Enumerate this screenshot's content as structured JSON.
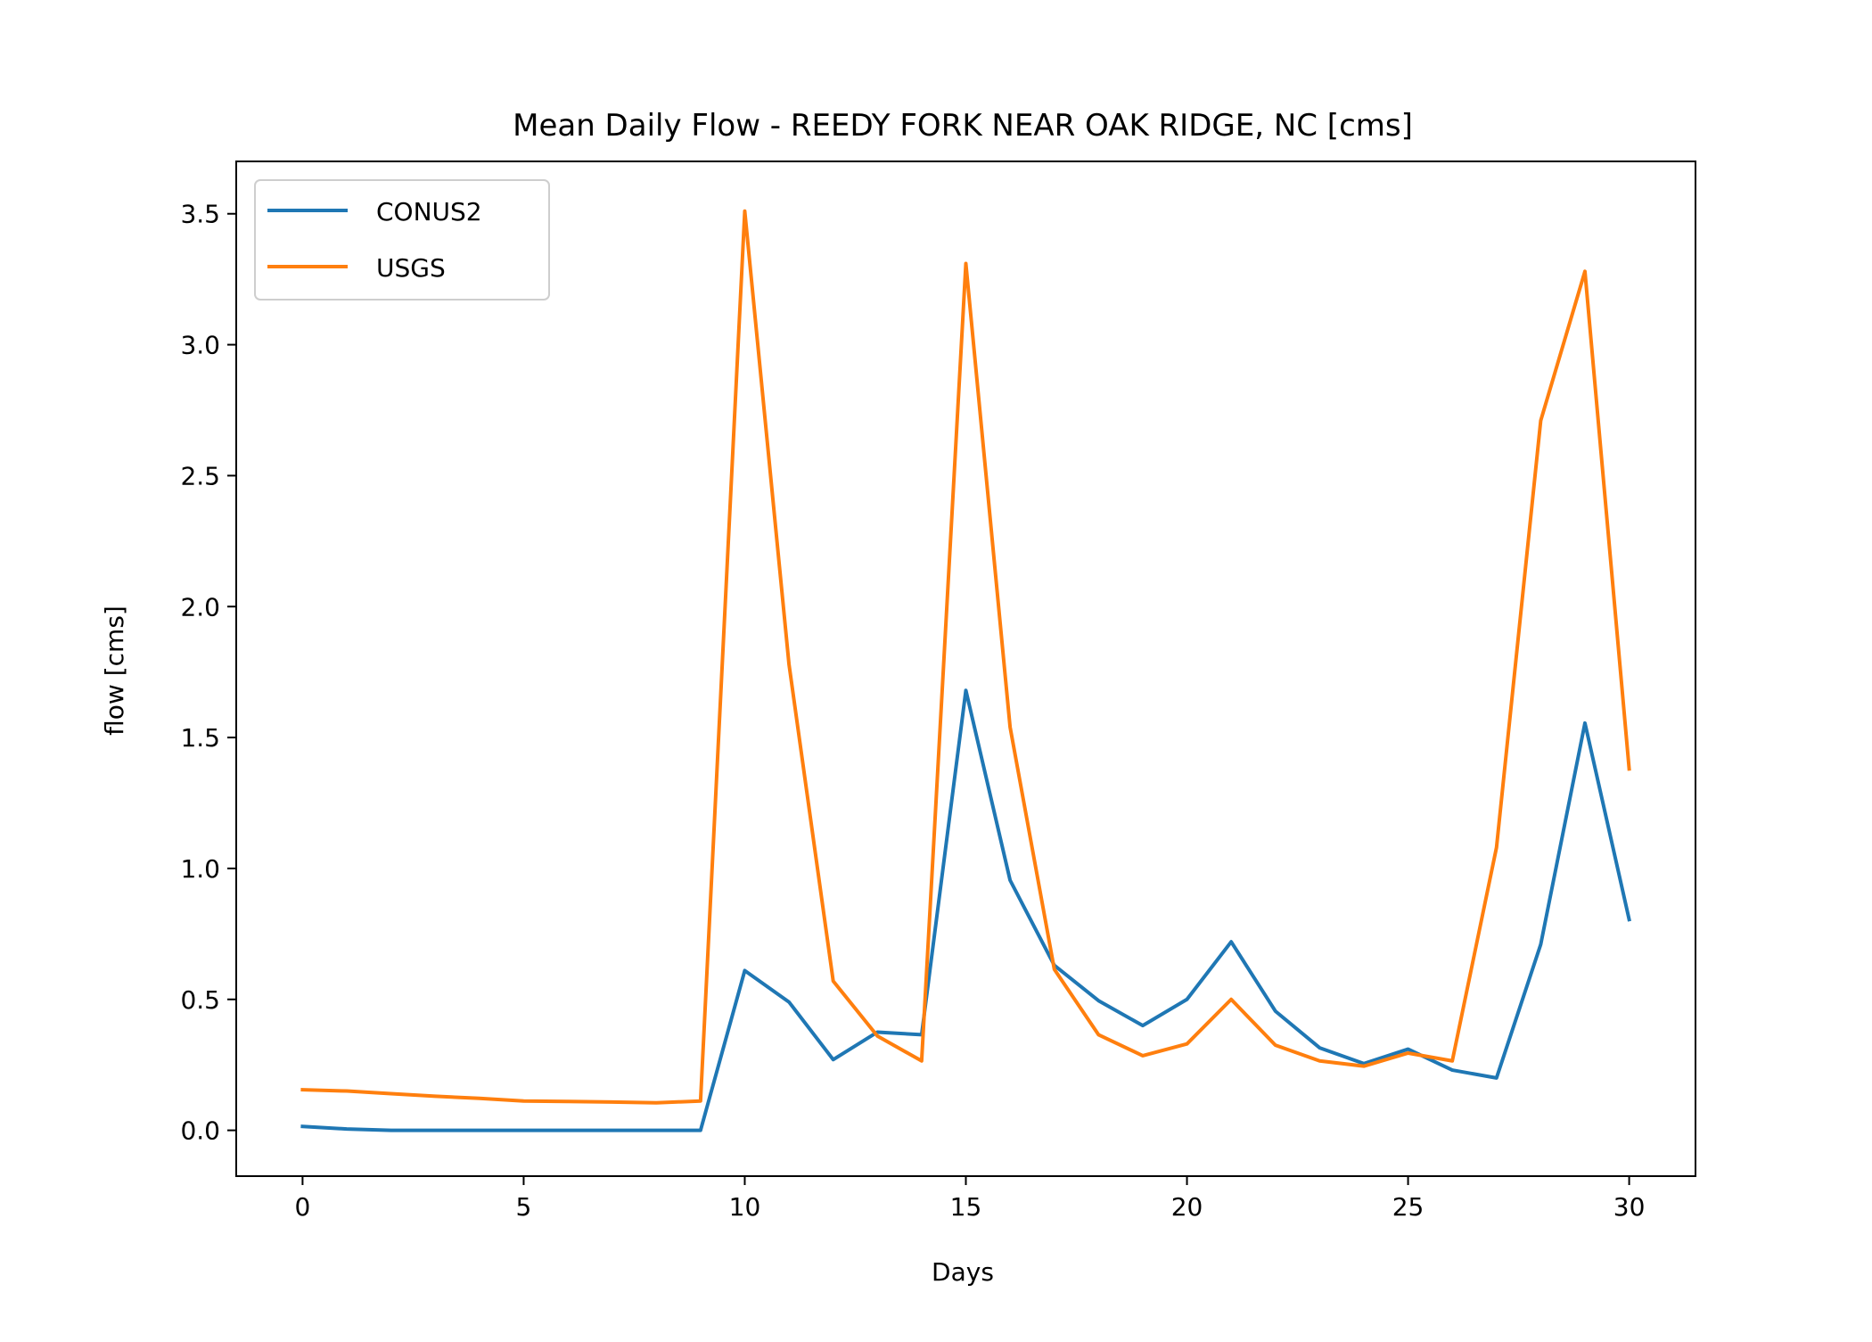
{
  "chart_data": {
    "type": "line",
    "title": "Mean Daily Flow - REEDY FORK NEAR OAK RIDGE, NC [cms]",
    "xlabel": "Days",
    "ylabel": "flow [cms]",
    "xlim": [
      -1.5,
      31.5
    ],
    "ylim": [
      -0.175,
      3.7
    ],
    "xticks": [
      0,
      5,
      10,
      15,
      20,
      25,
      30
    ],
    "yticks": [
      0.0,
      0.5,
      1.0,
      1.5,
      2.0,
      2.5,
      3.0,
      3.5
    ],
    "ytick_labels": [
      "0.0",
      "0.5",
      "1.0",
      "1.5",
      "2.0",
      "2.5",
      "3.0",
      "3.5"
    ],
    "grid": false,
    "legend_position": "top-left",
    "x": [
      0,
      1,
      2,
      3,
      4,
      5,
      6,
      7,
      8,
      9,
      10,
      11,
      12,
      13,
      14,
      15,
      16,
      17,
      18,
      19,
      20,
      21,
      22,
      23,
      24,
      25,
      26,
      27,
      28,
      29,
      30
    ],
    "series": [
      {
        "name": "CONUS2",
        "color": "#1f77b4",
        "values": [
          0.015,
          0.005,
          0.0,
          0.0,
          0.0,
          0.0,
          0.0,
          0.0,
          0.0,
          0.0,
          0.61,
          0.49,
          0.27,
          0.375,
          0.365,
          1.68,
          0.955,
          0.63,
          0.495,
          0.4,
          0.5,
          0.72,
          0.455,
          0.315,
          0.255,
          0.31,
          0.23,
          0.2,
          0.71,
          1.555,
          0.805
        ]
      },
      {
        "name": "USGS",
        "color": "#ff7f0e",
        "values": [
          0.155,
          0.15,
          0.14,
          0.13,
          0.122,
          0.112,
          0.11,
          0.108,
          0.105,
          0.112,
          3.51,
          1.78,
          0.57,
          0.36,
          0.265,
          3.31,
          1.54,
          0.615,
          0.365,
          0.285,
          0.33,
          0.5,
          0.325,
          0.265,
          0.245,
          0.295,
          0.265,
          1.08,
          2.71,
          3.28,
          1.38
        ]
      }
    ]
  }
}
